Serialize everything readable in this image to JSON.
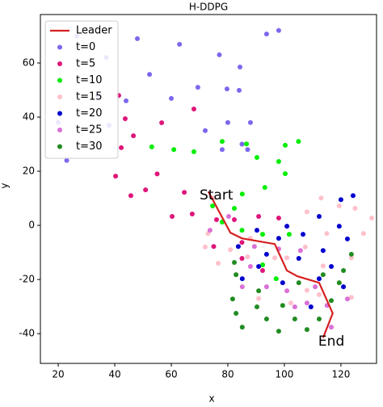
{
  "chart_data": {
    "type": "scatter",
    "title": "H-DDPG",
    "x_label": "x",
    "y_label": "y",
    "xlim": [
      13.7,
      132.6
    ],
    "ylim": [
      -51,
      77.9
    ],
    "xticks": [
      20,
      40,
      60,
      80,
      100,
      120
    ],
    "yticks": [
      -40,
      -20,
      0,
      20,
      40,
      60
    ],
    "legend": "upper left",
    "annotations": [
      {
        "text": "Start",
        "x": 70,
        "y": 11
      },
      {
        "text": "End",
        "x": 112,
        "y": -43
      }
    ],
    "series": [
      {
        "name": "Leader",
        "kind": "line",
        "color": "#d62020",
        "x": [
          73.1,
          80.9,
          85,
          96.6,
          100.9,
          104.6,
          112.3,
          117.1,
          113.7
        ],
        "y": [
          12.5,
          -2.7,
          -4.8,
          -6.9,
          -16.7,
          -18.8,
          -21.2,
          -32.5,
          -41.5
        ]
      },
      {
        "name": "t=0",
        "kind": "scatter",
        "color": "#7b68ee",
        "x": [
          26.6,
          48,
          37,
          34,
          23,
          62.9,
          77,
          93.7,
          98,
          52.3,
          84.3,
          69.4,
          60,
          79.7,
          84,
          80,
          72,
          88,
          85,
          78,
          87,
          44,
          38,
          20
        ],
        "y": [
          69.9,
          69,
          62,
          48,
          24,
          66.9,
          63,
          70.7,
          72,
          55.8,
          58.5,
          51,
          46.9,
          50.4,
          49.9,
          38,
          35,
          38,
          30,
          28,
          28,
          46,
          37,
          38
        ]
      },
      {
        "name": "t=5",
        "kind": "scatter",
        "color": "#e0157a",
        "x": [
          41.4,
          43.7,
          68,
          42.3,
          46.6,
          56.6,
          55,
          40.3,
          45.7,
          50.9,
          64.6,
          60.3,
          67.4,
          76,
          82.3,
          90.9,
          98,
          75,
          85,
          92.3,
          85
        ],
        "y": [
          48,
          39.4,
          43,
          28.7,
          33.1,
          37.9,
          19,
          18.2,
          11,
          13.1,
          12.2,
          3.3,
          4.2,
          2.1,
          2.1,
          3.3,
          2.7,
          -7.8,
          -12.2,
          -16.7,
          -6.3
        ]
      },
      {
        "name": "t=10",
        "kind": "scatter",
        "color": "#00ee00",
        "x": [
          53.1,
          60.9,
          68,
          78,
          86.6,
          90.3,
          98,
          105,
          100.3,
          93.1,
          100.3,
          85.1,
          74.6,
          82.3,
          78,
          92.3,
          97.1,
          101.7,
          85,
          92.3
        ],
        "y": [
          29,
          28,
          27.2,
          31,
          30.1,
          25.1,
          23.6,
          31,
          29.6,
          14,
          19.1,
          11.6,
          7.2,
          6.3,
          1.2,
          -3.3,
          -19.7,
          -3.3,
          -1.8,
          -14.6
        ]
      },
      {
        "name": "t=15",
        "kind": "scatter",
        "color": "#ffc0cb",
        "x": [
          75,
          73,
          72,
          76.6,
          80.9,
          87,
          88,
          96.6,
          100.9,
          107.4,
          115,
          119.4,
          125,
          128,
          123.7,
          113.7,
          108,
          102.3,
          90.9,
          112.3,
          123.7,
          108,
          113,
          130.9
        ],
        "y": [
          10,
          -3,
          -8,
          -14,
          -9,
          -11.6,
          -4.8,
          -12,
          -12,
          -8,
          -3,
          7.2,
          6.3,
          -3,
          -12,
          -15,
          -24,
          -28.7,
          -27,
          -25.6,
          -26.6,
          5,
          10.1,
          2.7
        ]
      },
      {
        "name": "t=20",
        "kind": "scatter",
        "color": "#0000cd",
        "x": [
          120,
          124.3,
          112.3,
          119.4,
          122.3,
          106.6,
          98,
          100.9,
          90.3,
          83.7,
          93.7,
          113.7,
          116.6,
          112.3,
          120.9,
          99.4,
          109.4,
          85.1,
          90.9,
          105.1
        ],
        "y": [
          9.5,
          11,
          3.3,
          -0.3,
          -5,
          -3.3,
          -4.8,
          -0.3,
          -1.8,
          -7.8,
          -10.7,
          -9.3,
          -15.2,
          -19.7,
          -22.7,
          -21.2,
          -30.1,
          -19.7,
          -15.2,
          -12.2
        ]
      },
      {
        "name": "t=25",
        "kind": "scatter",
        "color": "#da70d6",
        "x": [
          80.3,
          73.7,
          88,
          93.7,
          100.9,
          103.7,
          108,
          115.1,
          122.3,
          116.6,
          110.9,
          98,
          105.7,
          85.1,
          89.4
        ],
        "y": [
          3.3,
          -1.8,
          -15.2,
          -22.7,
          -24.2,
          -30.1,
          -28.7,
          -29.6,
          -27.2,
          -37.6,
          -22.7,
          -8.7,
          -9.3,
          -22.7,
          -7.8
        ]
      },
      {
        "name": "t=30",
        "kind": "scatter",
        "color": "#228b22",
        "x": [
          82.3,
          82.9,
          81.7,
          82.9,
          85.1,
          90.3,
          93.7,
          99.4,
          98,
          103.7,
          108,
          112.3,
          116.6,
          119.4,
          120.9,
          123.7,
          113.7,
          90.9,
          105.1
        ],
        "y": [
          -13.7,
          -18.2,
          -27.2,
          -32.5,
          -37.6,
          -30.1,
          -34.6,
          -29.6,
          -39.1,
          -34.6,
          -38.5,
          -34.6,
          -27.8,
          -21.2,
          -16.7,
          -10.7,
          -18.2,
          -24.2,
          -21.2
        ]
      }
    ]
  }
}
